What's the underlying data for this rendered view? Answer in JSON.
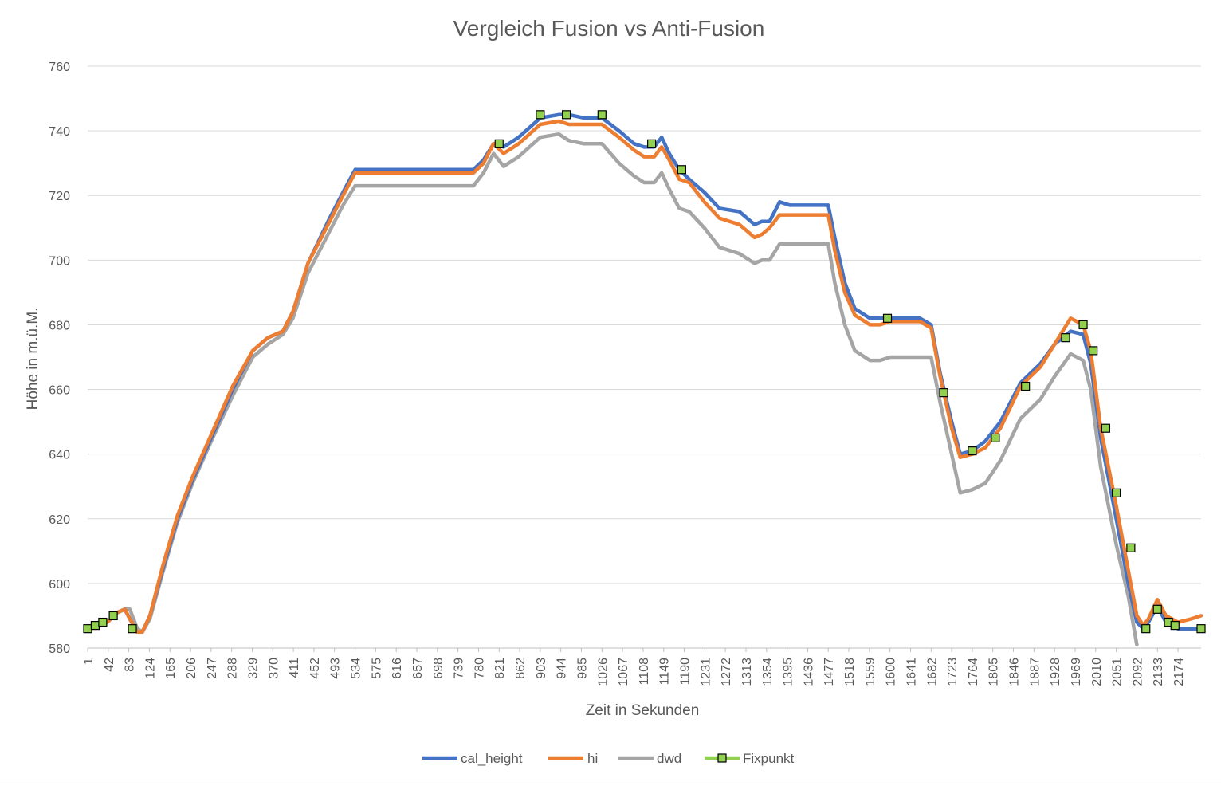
{
  "chart_data": {
    "type": "line",
    "title": "Vergleich Fusion vs Anti-Fusion",
    "xlabel": "Zeit in Sekunden",
    "ylabel": "Höhe in m.ü.M.",
    "ylim": [
      580,
      760
    ],
    "yticks": [
      580,
      600,
      620,
      640,
      660,
      680,
      700,
      720,
      740,
      760
    ],
    "xlim": [
      1,
      2220
    ],
    "xticks": [
      "1",
      "42",
      "83",
      "124",
      "165",
      "206",
      "247",
      "288",
      "329",
      "370",
      "411",
      "452",
      "493",
      "534",
      "575",
      "616",
      "657",
      "698",
      "739",
      "780",
      "821",
      "862",
      "903",
      "944",
      "985",
      "1026",
      "1067",
      "1108",
      "1149",
      "1190",
      "1231",
      "1272",
      "1313",
      "1354",
      "1395",
      "1436",
      "1477",
      "1518",
      "1559",
      "1600",
      "1641",
      "1682",
      "1723",
      "1764",
      "1805",
      "1846",
      "1887",
      "1928",
      "1969",
      "2010",
      "2051",
      "2092",
      "2133",
      "2174"
    ],
    "grid": true,
    "legend_position": "bottom",
    "series": [
      {
        "name": "cal_height",
        "color": "#4472c4",
        "x": [
          1,
          20,
          40,
          60,
          75,
          85,
          100,
          110,
          125,
          150,
          180,
          210,
          250,
          290,
          330,
          360,
          390,
          410,
          440,
          480,
          510,
          534,
          600,
          700,
          770,
          790,
          810,
          830,
          860,
          903,
          940,
          960,
          990,
          1026,
          1060,
          1090,
          1110,
          1130,
          1145,
          1160,
          1180,
          1200,
          1230,
          1260,
          1300,
          1330,
          1345,
          1360,
          1380,
          1400,
          1440,
          1477,
          1490,
          1510,
          1530,
          1560,
          1580,
          1600,
          1641,
          1660,
          1682,
          1700,
          1723,
          1740,
          1764,
          1790,
          1820,
          1860,
          1900,
          1928,
          1960,
          1985,
          2000,
          2020,
          2051,
          2075,
          2092,
          2105,
          2115,
          2133,
          2150,
          2174,
          2200,
          2220
        ],
        "y": [
          586,
          586.5,
          588,
          591,
          592,
          589,
          585,
          585,
          590,
          604,
          620,
          632,
          646,
          660,
          672,
          676,
          678,
          684,
          699,
          712,
          721,
          728,
          728,
          728,
          728,
          731,
          736,
          735,
          738,
          744,
          745,
          745,
          744,
          744,
          740,
          736,
          735,
          735,
          738,
          733,
          728,
          725,
          721,
          716,
          715,
          711,
          712,
          712,
          718,
          717,
          717,
          717,
          707,
          693,
          685,
          682,
          682,
          682,
          682,
          682,
          680,
          665,
          650,
          640,
          641,
          644,
          650,
          662,
          668,
          674,
          678,
          677,
          668,
          645,
          620,
          600,
          588,
          586,
          588,
          593,
          588,
          586,
          586,
          586
        ]
      },
      {
        "name": "hi",
        "color": "#ed7d31",
        "x": [
          1,
          20,
          40,
          60,
          75,
          85,
          100,
          110,
          125,
          150,
          180,
          210,
          250,
          290,
          330,
          360,
          390,
          410,
          440,
          480,
          510,
          534,
          600,
          700,
          770,
          790,
          810,
          830,
          860,
          903,
          940,
          960,
          990,
          1026,
          1060,
          1090,
          1110,
          1130,
          1145,
          1160,
          1180,
          1200,
          1230,
          1260,
          1300,
          1330,
          1345,
          1360,
          1380,
          1400,
          1440,
          1477,
          1490,
          1510,
          1530,
          1560,
          1580,
          1600,
          1641,
          1660,
          1682,
          1700,
          1723,
          1740,
          1764,
          1790,
          1820,
          1860,
          1900,
          1928,
          1960,
          1985,
          2000,
          2020,
          2051,
          2075,
          2092,
          2105,
          2115,
          2133,
          2150,
          2174,
          2200,
          2220
        ],
        "y": [
          586,
          586.5,
          588,
          591,
          592,
          589,
          585,
          585,
          590,
          605,
          621,
          633,
          647,
          661,
          672,
          676,
          678,
          684,
          699,
          711,
          720,
          727,
          727,
          727,
          727,
          730,
          736,
          733,
          736,
          742,
          743,
          742,
          742,
          742,
          738,
          734,
          732,
          732,
          735,
          731,
          725,
          724,
          718,
          713,
          711,
          707,
          708,
          710,
          714,
          714,
          714,
          714,
          703,
          690,
          683,
          680,
          680,
          681,
          681,
          681,
          679,
          664,
          648,
          639,
          640,
          642,
          648,
          661,
          667,
          674,
          682,
          680,
          672,
          648,
          624,
          604,
          590,
          587,
          589,
          595,
          590,
          588,
          589,
          590
        ]
      },
      {
        "name": "dwd",
        "color": "#a5a5a5",
        "x": [
          1,
          20,
          40,
          60,
          75,
          85,
          100,
          110,
          125,
          150,
          180,
          210,
          250,
          290,
          330,
          360,
          390,
          410,
          440,
          480,
          510,
          534,
          600,
          700,
          770,
          790,
          810,
          830,
          860,
          903,
          940,
          960,
          990,
          1026,
          1060,
          1090,
          1110,
          1130,
          1145,
          1160,
          1180,
          1200,
          1230,
          1260,
          1300,
          1330,
          1345,
          1360,
          1380,
          1400,
          1440,
          1477,
          1490,
          1510,
          1530,
          1560,
          1580,
          1600,
          1641,
          1660,
          1682,
          1700,
          1723,
          1740,
          1764,
          1790,
          1820,
          1860,
          1900,
          1928,
          1960,
          1985,
          2000,
          2020,
          2051,
          2075,
          2092
        ],
        "y": [
          586,
          586.5,
          588,
          591,
          592,
          592,
          586,
          585,
          589,
          603,
          619,
          631,
          645,
          658,
          670,
          674,
          677,
          682,
          696,
          708,
          717,
          723,
          723,
          723,
          723,
          727,
          733,
          729,
          732,
          738,
          739,
          737,
          736,
          736,
          730,
          726,
          724,
          724,
          727,
          722,
          716,
          715,
          710,
          704,
          702,
          699,
          700,
          700,
          705,
          705,
          705,
          705,
          693,
          680,
          672,
          669,
          669,
          670,
          670,
          670,
          670,
          656,
          640,
          628,
          629,
          631,
          638,
          651,
          657,
          664,
          671,
          669,
          660,
          636,
          612,
          596,
          581
        ]
      },
      {
        "name": "Fixpunkt",
        "color": "#92d050",
        "x": [
          1,
          16,
          31,
          52,
          90,
          821,
          903,
          955,
          1026,
          1125,
          1185,
          1595,
          1707,
          1764,
          1810,
          1870,
          1950,
          1985,
          2005,
          2030,
          2051,
          2080,
          2110,
          2133,
          2155,
          2168,
          2220
        ],
        "y": [
          586,
          587,
          588,
          590,
          586,
          736,
          745,
          745,
          745,
          736,
          728,
          682,
          659,
          641,
          645,
          661,
          676,
          680,
          672,
          648,
          628,
          611,
          586,
          592,
          588,
          587,
          586
        ]
      }
    ]
  }
}
